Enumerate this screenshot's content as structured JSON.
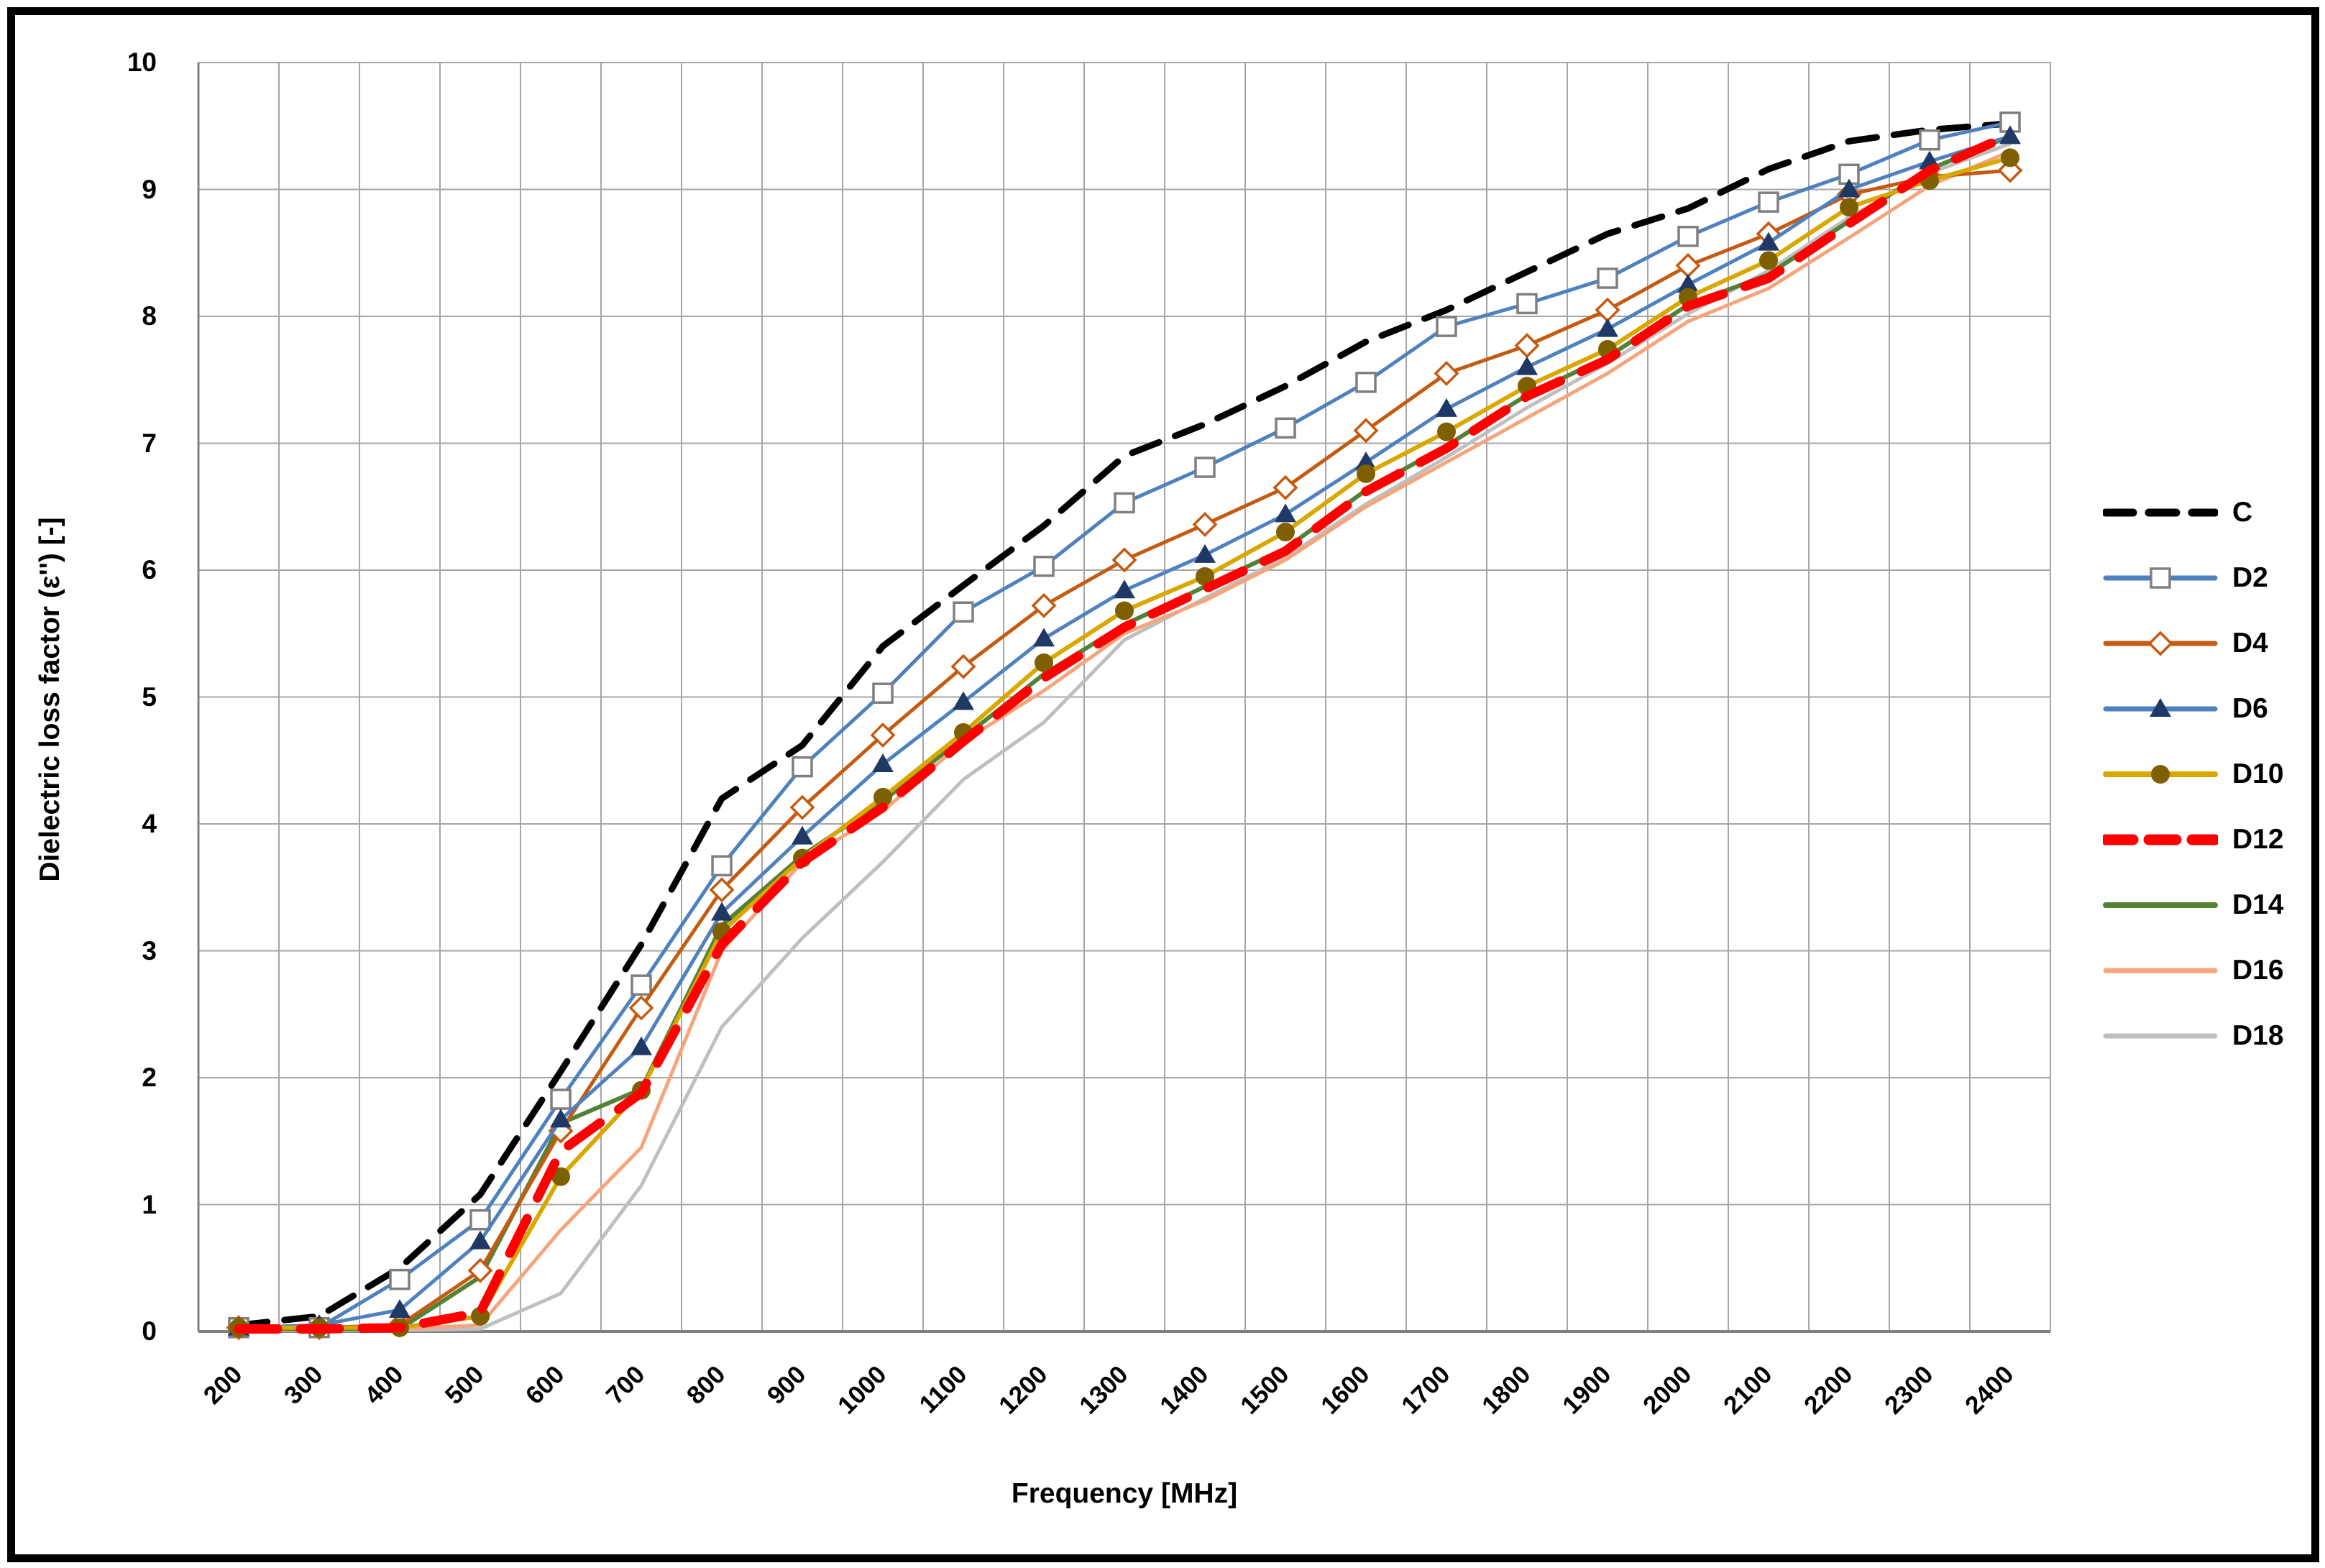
{
  "chart_data": {
    "type": "line",
    "title": "",
    "xlabel": "Frequency [MHz]",
    "ylabel": "Dielectric loss factor (ε'') [-]",
    "x_categories": [
      200,
      300,
      400,
      500,
      600,
      700,
      800,
      900,
      1000,
      1100,
      1200,
      1300,
      1400,
      1500,
      1600,
      1700,
      1800,
      1900,
      2000,
      2100,
      2200,
      2300,
      2400
    ],
    "y_ticks": [
      0,
      1,
      2,
      3,
      4,
      5,
      6,
      7,
      8,
      9,
      10
    ],
    "ylim": [
      0,
      10
    ],
    "grid": true,
    "legend_position": "right",
    "grid_color": "#A6A6A6",
    "axis_color": "#808080",
    "series": [
      {
        "name": "C",
        "color": "#000000",
        "line_width": 9,
        "dash": "40 24",
        "marker": "none",
        "values": [
          0.05,
          0.12,
          0.5,
          1.08,
          2.05,
          3.05,
          4.2,
          4.62,
          5.4,
          5.88,
          6.35,
          6.9,
          7.15,
          7.45,
          7.8,
          8.05,
          8.35,
          8.65,
          8.85,
          9.16,
          9.38,
          9.47,
          9.52
        ]
      },
      {
        "name": "D2",
        "color": "#4E81BD",
        "line_width": 5,
        "dash": null,
        "marker": "open-square",
        "marker_color": "#7F7F7F",
        "marker_fill": "#FFFFFF",
        "values": [
          0.03,
          0.03,
          0.41,
          0.88,
          1.83,
          2.73,
          3.67,
          4.45,
          5.03,
          5.67,
          6.03,
          6.53,
          6.81,
          7.12,
          7.48,
          7.92,
          8.1,
          8.3,
          8.63,
          8.9,
          9.12,
          9.39,
          9.53
        ]
      },
      {
        "name": "D4",
        "color": "#C55A11",
        "line_width": 5,
        "dash": null,
        "marker": "open-diamond",
        "marker_color": "#C55A11",
        "marker_fill": "#FFFFFF",
        "values": [
          0.03,
          0.03,
          0.05,
          0.48,
          1.58,
          2.55,
          3.48,
          4.13,
          4.7,
          5.24,
          5.72,
          6.08,
          6.36,
          6.65,
          7.1,
          7.55,
          7.77,
          8.05,
          8.4,
          8.65,
          8.96,
          9.1,
          9.15
        ]
      },
      {
        "name": "D6",
        "color": "#4E81BD",
        "line_width": 5,
        "dash": null,
        "marker": "filled-triangle",
        "marker_color": "#1F3864",
        "marker_fill": "#1F3864",
        "values": [
          0.03,
          0.05,
          0.17,
          0.71,
          1.67,
          2.24,
          3.3,
          3.9,
          4.47,
          4.96,
          5.46,
          5.84,
          6.12,
          6.44,
          6.85,
          7.27,
          7.6,
          7.9,
          8.25,
          8.58,
          9.0,
          9.22,
          9.42
        ]
      },
      {
        "name": "D10",
        "color": "#D9A800",
        "line_width": 6,
        "dash": null,
        "marker": "filled-circle",
        "marker_color": "#7F6000",
        "marker_fill": "#7F6000",
        "values": [
          0.03,
          0.03,
          0.03,
          0.12,
          1.22,
          1.9,
          3.15,
          3.73,
          4.21,
          4.72,
          5.27,
          5.68,
          5.95,
          6.3,
          6.76,
          7.09,
          7.45,
          7.74,
          8.15,
          8.44,
          8.86,
          9.07,
          9.25
        ]
      },
      {
        "name": "D12",
        "color": "#FF0000",
        "line_width": 13,
        "dash": "54 32",
        "marker": "none",
        "values": [
          0.02,
          0.02,
          0.03,
          0.15,
          1.42,
          1.88,
          3.05,
          3.7,
          4.13,
          4.65,
          5.15,
          5.55,
          5.85,
          6.15,
          6.62,
          6.96,
          7.37,
          7.66,
          8.08,
          8.3,
          8.73,
          9.15,
          9.43
        ]
      },
      {
        "name": "D14",
        "color": "#538135",
        "line_width": 6,
        "dash": null,
        "marker": "none",
        "values": [
          0.02,
          0.02,
          0.02,
          0.43,
          1.64,
          1.91,
          3.2,
          3.75,
          4.18,
          4.68,
          5.18,
          5.57,
          5.87,
          6.17,
          6.63,
          6.98,
          7.38,
          7.68,
          8.09,
          8.33,
          8.75,
          9.16,
          9.42
        ]
      },
      {
        "name": "D16",
        "color": "#F5A57C",
        "line_width": 5,
        "dash": null,
        "marker": "none",
        "values": [
          0.01,
          0.01,
          0.02,
          0.05,
          0.8,
          1.45,
          3.0,
          3.7,
          4.1,
          4.65,
          5.05,
          5.5,
          5.76,
          6.08,
          6.5,
          6.85,
          7.2,
          7.55,
          7.96,
          8.22,
          8.62,
          9.03,
          9.3
        ]
      },
      {
        "name": "D18",
        "color": "#BFBFBF",
        "line_width": 5,
        "dash": null,
        "marker": "none",
        "values": [
          0.01,
          0.01,
          0.01,
          0.02,
          0.3,
          1.15,
          2.4,
          3.1,
          3.7,
          4.35,
          4.8,
          5.45,
          5.78,
          6.1,
          6.52,
          6.89,
          7.28,
          7.63,
          8.02,
          8.36,
          8.78,
          9.13,
          9.36
        ]
      }
    ],
    "draw_order": [
      "D18",
      "D16",
      "D14",
      "C",
      "D2",
      "D4",
      "D6",
      "D10",
      "D12"
    ],
    "legend_order": [
      "C",
      "D2",
      "D4",
      "D6",
      "D10",
      "D12",
      "D14",
      "D16",
      "D18"
    ]
  },
  "layout_text": {
    "x_axis_title": "Frequency [MHz]",
    "y_axis_title": "Dielectric loss factor (ε'') [-]"
  }
}
